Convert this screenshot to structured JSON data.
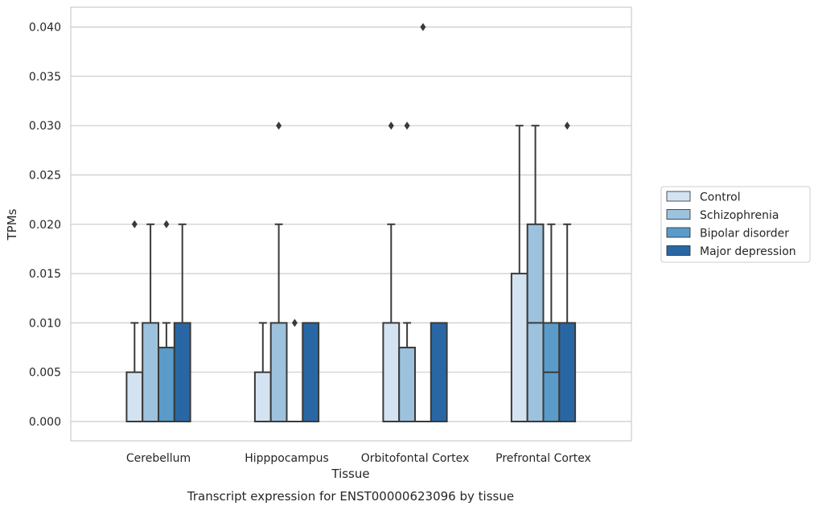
{
  "chart_data": {
    "type": "box",
    "title": "Transcript expression for ENST00000623096 by tissue",
    "xlabel": "Tissue",
    "ylabel": "TPMs",
    "ylim": [
      -0.002,
      0.042
    ],
    "yticks": [
      "0.000",
      "0.005",
      "0.010",
      "0.015",
      "0.020",
      "0.025",
      "0.030",
      "0.035",
      "0.040"
    ],
    "categories": [
      "Cerebellum",
      "Hipppocampus",
      "Orbitofontal Cortex",
      "Prefrontal Cortex"
    ],
    "grid": "horizontal",
    "legend_position": "right",
    "series": [
      {
        "name": "Control",
        "color": "#d4e3f1",
        "boxes": [
          {
            "q1": 0.0,
            "median": 0.0,
            "q3": 0.005,
            "whisker_low": 0.0,
            "whisker_high": 0.01,
            "fliers": [
              0.02
            ]
          },
          {
            "q1": 0.0,
            "median": 0.0,
            "q3": 0.005,
            "whisker_low": 0.0,
            "whisker_high": 0.01,
            "fliers": []
          },
          {
            "q1": 0.0,
            "median": 0.0,
            "q3": 0.01,
            "whisker_low": 0.0,
            "whisker_high": 0.02,
            "fliers": [
              0.03
            ]
          },
          {
            "q1": 0.0,
            "median": 0.0,
            "q3": 0.015,
            "whisker_low": 0.0,
            "whisker_high": 0.03,
            "fliers": []
          }
        ]
      },
      {
        "name": "Schizophrenia",
        "color": "#9dc2dd",
        "boxes": [
          {
            "q1": 0.0,
            "median": 0.0,
            "q3": 0.01,
            "whisker_low": 0.0,
            "whisker_high": 0.02,
            "fliers": []
          },
          {
            "q1": 0.0,
            "median": 0.0,
            "q3": 0.01,
            "whisker_low": 0.0,
            "whisker_high": 0.02,
            "fliers": [
              0.03
            ]
          },
          {
            "q1": 0.0,
            "median": 0.0,
            "q3": 0.0075,
            "whisker_low": 0.0,
            "whisker_high": 0.01,
            "fliers": [
              0.03
            ]
          },
          {
            "q1": 0.0,
            "median": 0.01,
            "q3": 0.02,
            "whisker_low": 0.0,
            "whisker_high": 0.03,
            "fliers": []
          }
        ]
      },
      {
        "name": "Bipolar disorder",
        "color": "#5a9bc9",
        "boxes": [
          {
            "q1": 0.0,
            "median": 0.0,
            "q3": 0.0075,
            "whisker_low": 0.0,
            "whisker_high": 0.01,
            "fliers": [
              0.02
            ]
          },
          {
            "q1": 0.0,
            "median": 0.0,
            "q3": 0.0,
            "whisker_low": 0.0,
            "whisker_high": 0.0,
            "fliers": [
              0.01
            ]
          },
          {
            "q1": 0.0,
            "median": 0.0,
            "q3": 0.0,
            "whisker_low": 0.0,
            "whisker_high": 0.0,
            "fliers": [
              0.04
            ]
          },
          {
            "q1": 0.0,
            "median": 0.005,
            "q3": 0.01,
            "whisker_low": 0.0,
            "whisker_high": 0.02,
            "fliers": []
          }
        ]
      },
      {
        "name": "Major depression",
        "color": "#2967a4",
        "boxes": [
          {
            "q1": 0.0,
            "median": 0.0,
            "q3": 0.01,
            "whisker_low": 0.0,
            "whisker_high": 0.02,
            "fliers": []
          },
          {
            "q1": 0.0,
            "median": 0.0,
            "q3": 0.01,
            "whisker_low": 0.0,
            "whisker_high": 0.01,
            "fliers": []
          },
          {
            "q1": 0.0,
            "median": 0.0,
            "q3": 0.01,
            "whisker_low": 0.0,
            "whisker_high": 0.01,
            "fliers": []
          },
          {
            "q1": 0.0,
            "median": 0.0,
            "q3": 0.01,
            "whisker_low": 0.0,
            "whisker_high": 0.02,
            "fliers": [
              0.03
            ]
          }
        ]
      }
    ]
  }
}
